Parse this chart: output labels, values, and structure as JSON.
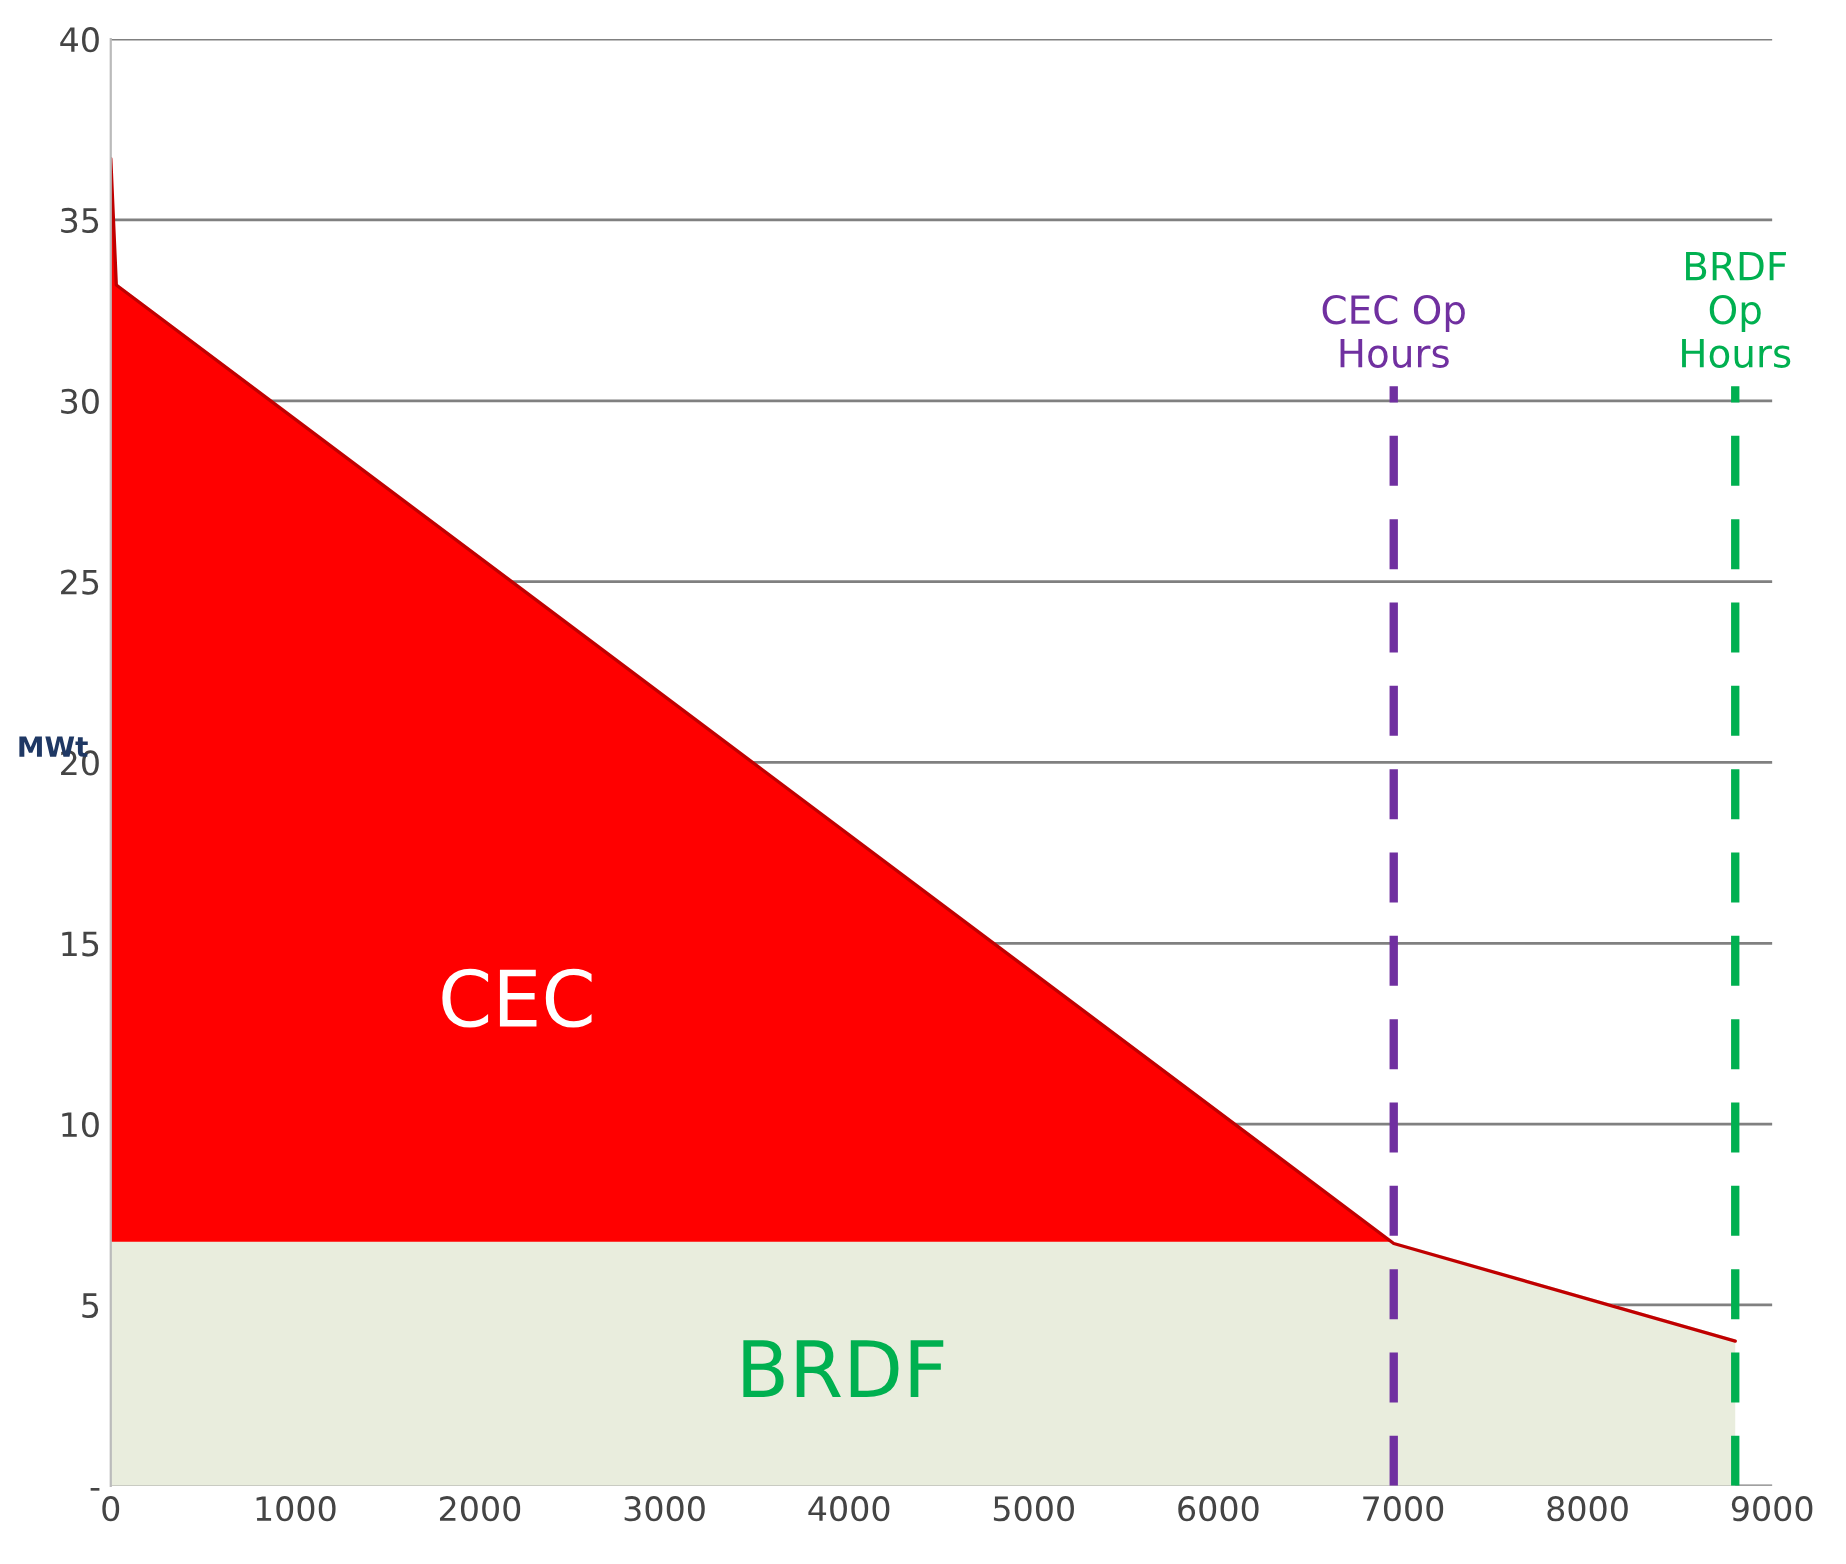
{
  "chart_data": {
    "type": "area",
    "ylabel": "MWt",
    "stacked": true,
    "x": [
      0,
      30,
      6950,
      8800
    ],
    "series": [
      {
        "name": "BRDF",
        "color": "#e9eddd",
        "values": [
          6.7,
          6.7,
          6.7,
          4.0
        ]
      },
      {
        "name": "CEC",
        "color": "#ff0000",
        "values": [
          30.0,
          26.5,
          0,
          0
        ]
      }
    ],
    "xlim": [
      0,
      9000
    ],
    "xticks": [
      0,
      1000,
      2000,
      3000,
      4000,
      5000,
      6000,
      7000,
      8000,
      9000
    ],
    "ylim": [
      0,
      40
    ],
    "yticks": [
      {
        "value": 0,
        "label": "-"
      },
      5,
      10,
      15,
      20,
      25,
      30,
      35,
      40
    ],
    "grid": "y",
    "ref_lines": [
      {
        "axis": "x",
        "value": 6950,
        "label": "CEC Op\nHours",
        "color": "#7030a0",
        "line_style": "dashed"
      },
      {
        "axis": "x",
        "value": 8800,
        "label": "BRDF\nOp\nHours",
        "color": "#00b050",
        "line_style": "dashed"
      }
    ]
  }
}
